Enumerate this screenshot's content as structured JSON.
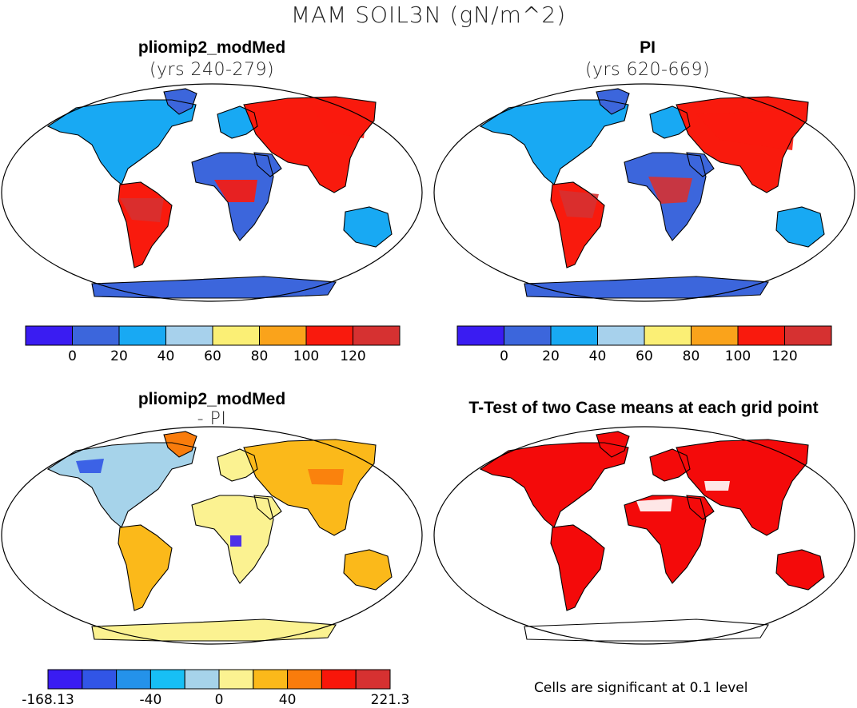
{
  "title": "MAM SOIL3N (gN/m^2)",
  "panels": [
    {
      "id": "p1",
      "title": "pliomip2_modMed",
      "subtitle": "(yrs 240-279)"
    },
    {
      "id": "p2",
      "title": "PI",
      "subtitle": "(yrs 620-669)"
    },
    {
      "id": "p3",
      "title": "pliomip2_modMed",
      "subtitle": "- PI"
    },
    {
      "id": "p4",
      "title": "T-Test of two Case means at each grid point",
      "subtitle": ""
    }
  ],
  "colorbars": {
    "abs": {
      "colors": [
        "#3a1cf2",
        "#3c66dc",
        "#18a9f3",
        "#a7d1ec",
        "#fbef75",
        "#faa31b",
        "#f91a0d",
        "#d63131"
      ],
      "labels": [
        "0",
        "20",
        "40",
        "60",
        "80",
        "100",
        "120"
      ]
    },
    "diff": {
      "colors": [
        "#3a1cf2",
        "#3155e6",
        "#2492ea",
        "#17bff5",
        "#a6d3ea",
        "#fbf291",
        "#fbb91a",
        "#f97c0c",
        "#f8160a",
        "#d63131"
      ],
      "labels": [
        "-168.13",
        "-40",
        "0",
        "40",
        "221.3"
      ],
      "label_boundaries": [
        0,
        3,
        5,
        7,
        10
      ]
    }
  },
  "significance_color": "#f40a0a",
  "footnote": "Cells are significant at 0.1 level"
}
